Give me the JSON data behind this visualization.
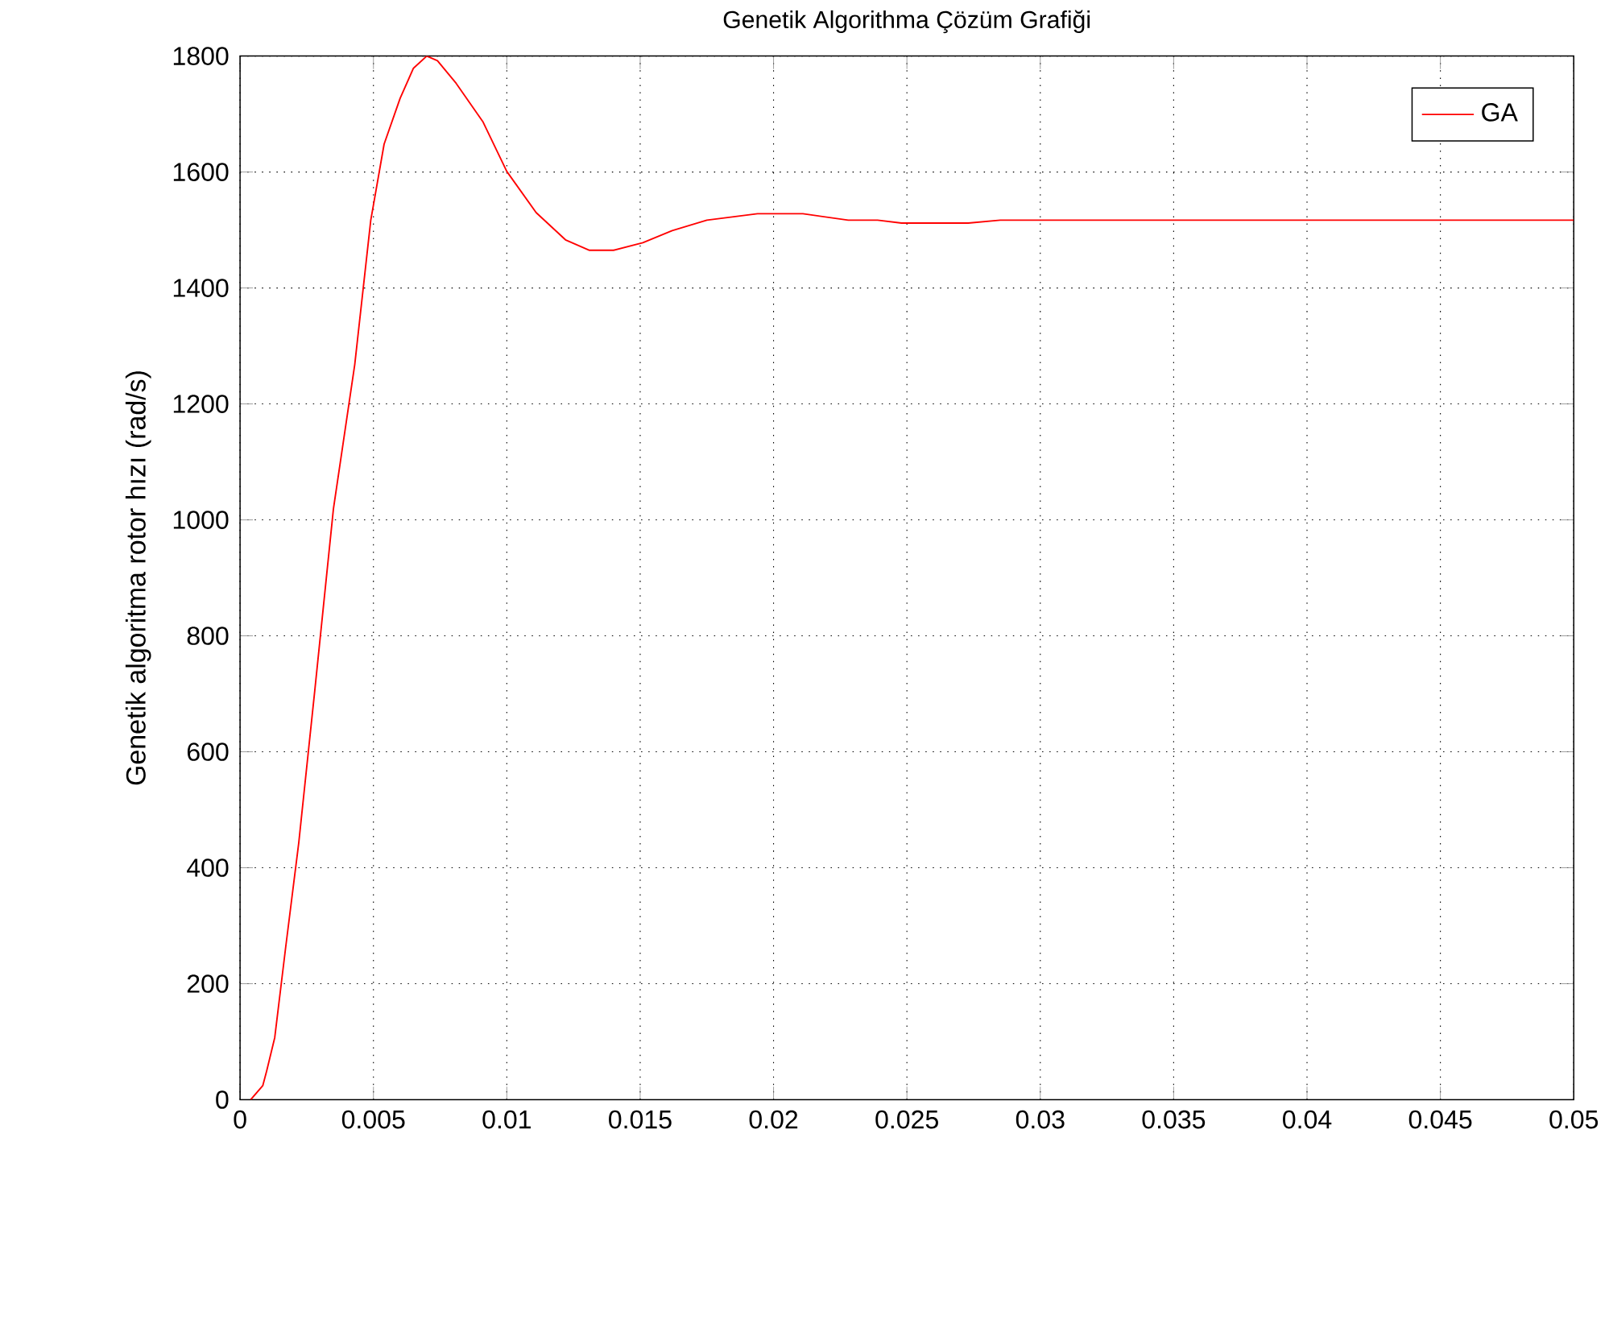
{
  "chart_data": {
    "type": "line",
    "title": "Genetik Algorithma Çözüm Grafiği",
    "ylabel": "Genetik algoritma rotor hızı (rad/s)",
    "xlim": [
      0,
      0.05
    ],
    "ylim": [
      0,
      1800
    ],
    "xticks": [
      0,
      0.005,
      0.01,
      0.015,
      0.02,
      0.025,
      0.03,
      0.035,
      0.04,
      0.045,
      0.05
    ],
    "yticks": [
      0,
      200,
      400,
      600,
      800,
      1000,
      1200,
      1400,
      1600,
      1800
    ],
    "grid": true,
    "legend": "top right",
    "marker": "none",
    "line_style": "solid",
    "series": [
      {
        "name": "GA",
        "color": "#ff0000",
        "x": [
          0.0004,
          0.00085,
          0.001,
          0.0013,
          0.0017,
          0.0022,
          0.0028,
          0.0035,
          0.0043,
          0.0049,
          0.005,
          0.0054,
          0.006,
          0.0065,
          0.007,
          0.0074,
          0.0081,
          0.0091,
          0.01,
          0.0111,
          0.0122,
          0.0131,
          0.014,
          0.0151,
          0.0162,
          0.0175,
          0.0194,
          0.0211,
          0.0228,
          0.0239,
          0.0248,
          0.0273,
          0.0285,
          0.05
        ],
        "values": [
          0,
          24,
          50,
          107,
          259,
          443,
          705,
          1019,
          1268,
          1517,
          1543,
          1648,
          1727,
          1779,
          1800,
          1792,
          1753,
          1687,
          1601,
          1530,
          1483,
          1465,
          1465,
          1478,
          1499,
          1517,
          1528,
          1528,
          1517,
          1517,
          1512,
          1512,
          1517,
          1517
        ]
      }
    ]
  }
}
